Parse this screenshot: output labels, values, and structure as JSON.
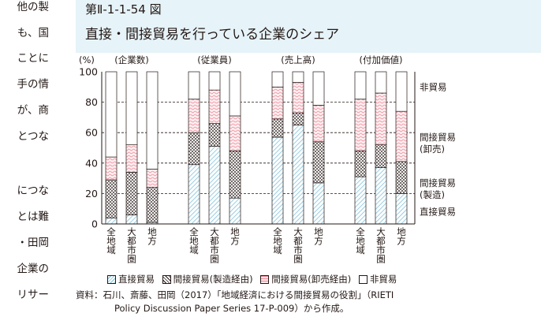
{
  "left_column": [
    "他の製",
    "も、国",
    "ことに",
    "手の情",
    "が、商",
    "とつな",
    "",
    "につな",
    "とは難",
    "・田岡",
    "企業の",
    "リサー"
  ],
  "header": {
    "figure_number": "第Ⅱ-1-1-54 図",
    "title": "直接・間接貿易を行っている企業のシェア"
  },
  "colors": {
    "header_bg": "#e6f3f8",
    "direct": "#7fc1db",
    "indirect_wholesale": "#ee8a98",
    "outline": "#231815"
  },
  "chart_data": {
    "type": "bar",
    "stacked": true,
    "ylabel": "(%)",
    "ylim": [
      0,
      100
    ],
    "yticks": [
      0,
      20,
      40,
      60,
      80,
      100
    ],
    "grid": "dashed horizontal lines",
    "groups": [
      {
        "label": "(企業数)",
        "categories": [
          "全地域",
          "大都市圏",
          "地方"
        ]
      },
      {
        "label": "(従業員)",
        "categories": [
          "全地域",
          "大都市圏",
          "地方"
        ]
      },
      {
        "label": "(売上高)",
        "categories": [
          "全地域",
          "大都市圏",
          "地方"
        ]
      },
      {
        "label": "(付加価値)",
        "categories": [
          "全地域",
          "大都市圏",
          "地方"
        ]
      }
    ],
    "series": [
      {
        "name": "直接貿易",
        "values": [
          4,
          6,
          1,
          39,
          51,
          17,
          57,
          65,
          27,
          31,
          37,
          20
        ]
      },
      {
        "name": "間接貿易(製造経由)",
        "values": [
          25,
          28,
          23,
          21,
          15,
          31,
          12,
          8,
          27,
          17,
          15,
          21
        ]
      },
      {
        "name": "間接貿易(卸売経由)",
        "values": [
          15,
          18,
          12,
          22,
          22,
          23,
          21,
          20,
          24,
          34,
          34,
          33
        ]
      },
      {
        "name": "非貿易",
        "values": [
          56,
          48,
          64,
          18,
          12,
          29,
          10,
          7,
          22,
          18,
          14,
          26
        ]
      }
    ],
    "right_labels": [
      {
        "text": "非貿易",
        "y": 90
      },
      {
        "text": "間接貿易",
        "text2": "(卸売)",
        "y": 57
      },
      {
        "text": "間接貿易",
        "text2": "(製造)",
        "y": 27
      },
      {
        "text": "直接貿易",
        "y": 8
      }
    ],
    "legend": [
      "直接貿易",
      "間接貿易(製造経由)",
      "間接貿易(卸売経由)",
      "非貿易"
    ]
  },
  "source": {
    "line1": "資料：石川、斎藤、田岡（2017）「地域経済における間接貿易の役割」（RIETI",
    "line2": "Policy Discussion Paper Series 17-P-009）から作成。"
  }
}
